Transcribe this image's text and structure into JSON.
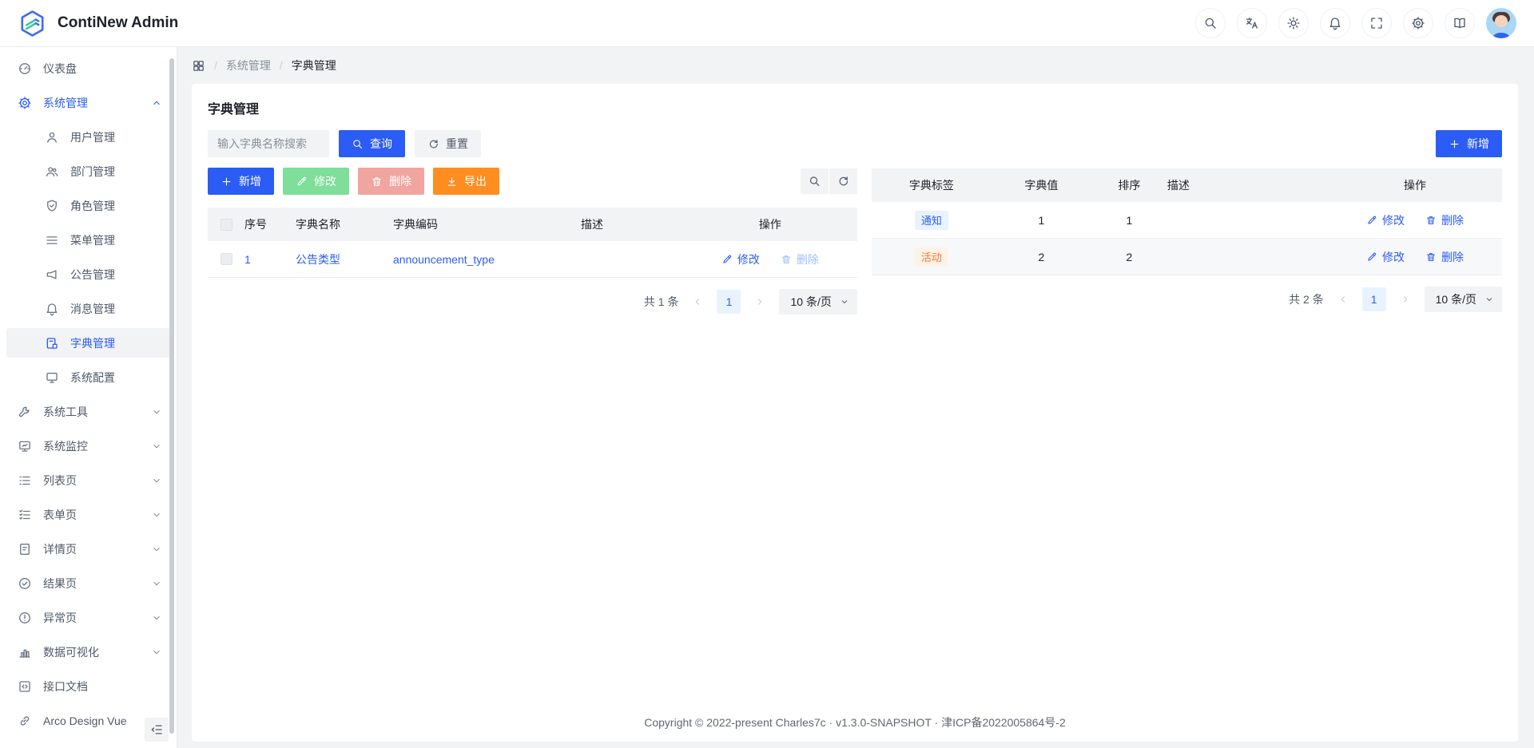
{
  "app": {
    "title": "ContiNew Admin"
  },
  "header": {
    "icons": [
      "search",
      "translate",
      "sun",
      "bell",
      "fullscreen",
      "gear",
      "book"
    ],
    "icon_names": [
      "search-icon",
      "translate-icon",
      "theme-light-icon",
      "notifications-icon",
      "fullscreen-icon",
      "settings-icon",
      "docs-icon"
    ],
    "avatar": "user-avatar"
  },
  "sidebar": {
    "items": [
      {
        "label": "仪表盘",
        "icon": "gauge"
      },
      {
        "label": "系统管理",
        "icon": "gear",
        "expanded": true,
        "active": true
      },
      {
        "label": "用户管理",
        "icon": "user"
      },
      {
        "label": "部门管理",
        "icon": "users"
      },
      {
        "label": "角色管理",
        "icon": "shield"
      },
      {
        "label": "菜单管理",
        "icon": "menu"
      },
      {
        "label": "公告管理",
        "icon": "megaphone"
      },
      {
        "label": "消息管理",
        "icon": "bell"
      },
      {
        "label": "字典管理",
        "icon": "dict",
        "selected": true
      },
      {
        "label": "系统配置",
        "icon": "monitor"
      },
      {
        "label": "系统工具",
        "icon": "wrench",
        "collapsed": true
      },
      {
        "label": "系统监控",
        "icon": "monitor-chart",
        "collapsed": true
      },
      {
        "label": "列表页",
        "icon": "list",
        "collapsed": true
      },
      {
        "label": "表单页",
        "icon": "form",
        "collapsed": true
      },
      {
        "label": "详情页",
        "icon": "file",
        "collapsed": true
      },
      {
        "label": "结果页",
        "icon": "check-circle",
        "collapsed": true
      },
      {
        "label": "异常页",
        "icon": "warning-circle",
        "collapsed": true
      },
      {
        "label": "数据可视化",
        "icon": "bar-chart",
        "collapsed": true
      },
      {
        "label": "接口文档",
        "icon": "code-square"
      },
      {
        "label": "Arco Design Vue",
        "icon": "link"
      }
    ]
  },
  "breadcrumb": {
    "sep": "/",
    "items": [
      "系统管理",
      "字典管理"
    ]
  },
  "page": {
    "title": "字典管理"
  },
  "search": {
    "placeholder": "输入字典名称搜索",
    "query_label": "查询",
    "reset_label": "重置"
  },
  "toolbar": {
    "add_label": "新增",
    "edit_label": "修改",
    "delete_label": "删除",
    "export_label": "导出"
  },
  "left_table": {
    "columns": [
      "序号",
      "字典名称",
      "字典编码",
      "描述",
      "操作"
    ],
    "rows": [
      {
        "index": "1",
        "name": "公告类型",
        "code": "announcement_type",
        "description": ""
      }
    ],
    "actions": {
      "edit": "修改",
      "delete": "删除"
    },
    "pagination": {
      "total": "共 1 条",
      "page": "1",
      "size": "10 条/页"
    }
  },
  "right_panel": {
    "add_label": "新增",
    "table": {
      "columns": [
        "字典标签",
        "字典值",
        "排序",
        "描述",
        "操作"
      ],
      "rows": [
        {
          "label": "通知",
          "label_color": "blue",
          "value": "1",
          "sort": "1",
          "description": ""
        },
        {
          "label": "活动",
          "label_color": "orange",
          "value": "2",
          "sort": "2",
          "description": ""
        }
      ],
      "actions": {
        "edit": "修改",
        "delete": "删除"
      },
      "pagination": {
        "total": "共 2 条",
        "page": "1",
        "size": "10 条/页"
      }
    }
  },
  "footer": {
    "copyright": "Copyright © 2022-present Charles7c · v1.3.0-SNAPSHOT · 津ICP备2022005864号-2"
  },
  "colors": {
    "primary": "#2b5cf5",
    "primary_light": "#e8f3ff",
    "green": "#7ede9a",
    "pink": "#f1a5a0",
    "orange": "#ff8d1f",
    "tag_orange_text": "#f77234",
    "tag_orange_bg": "#fff3e8",
    "bg_gray": "#f2f3f5"
  }
}
